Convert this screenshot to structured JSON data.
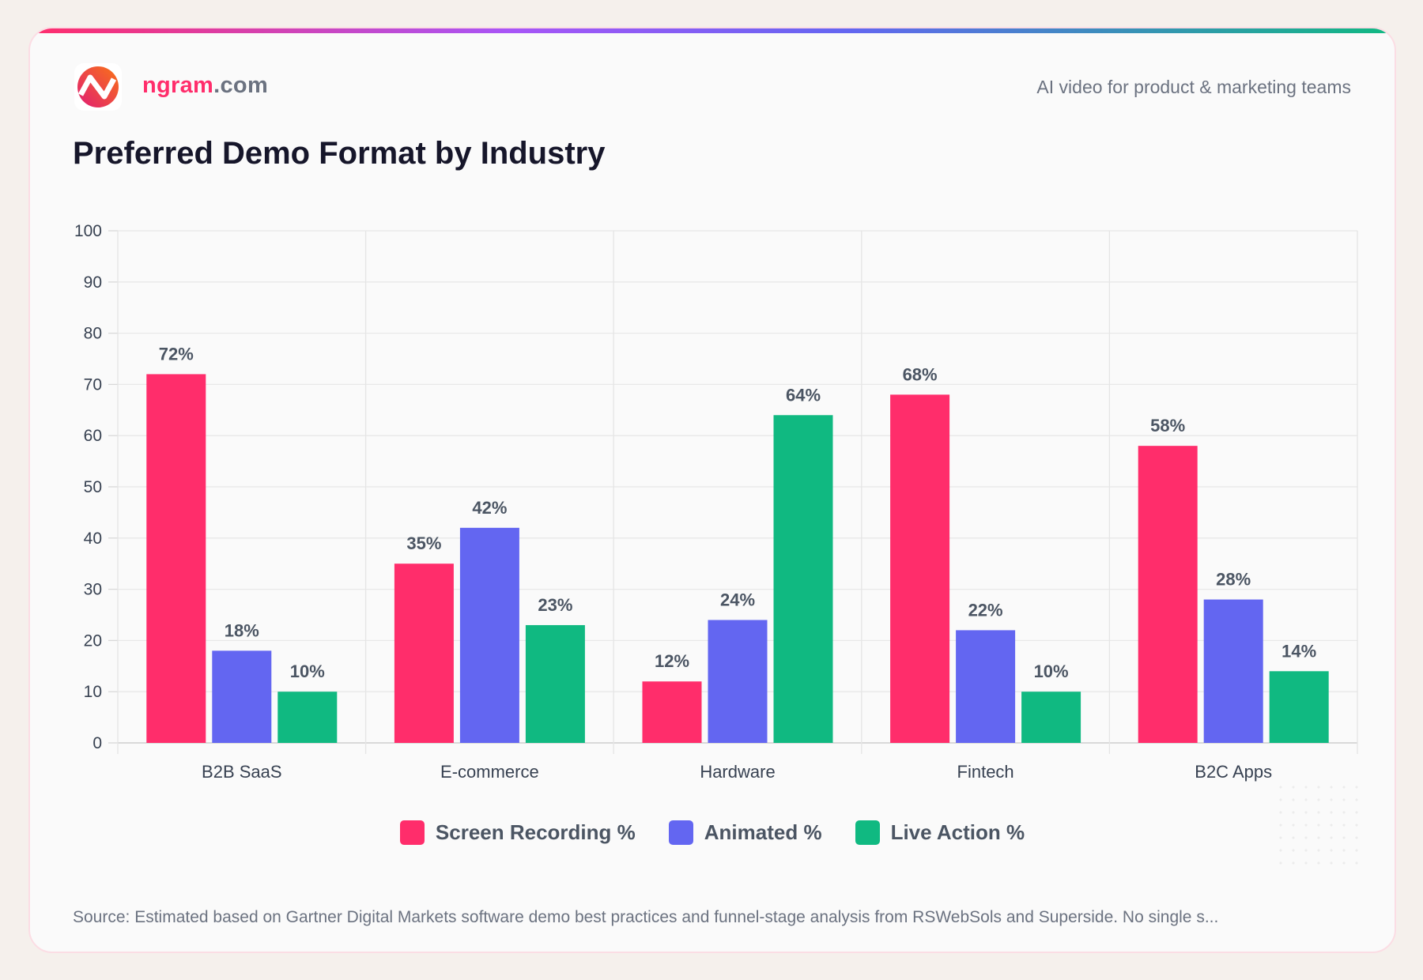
{
  "brand": {
    "name_primary": "ngram",
    "name_suffix": ".com",
    "tagline": "AI video for product & marketing teams"
  },
  "title": "Preferred Demo Format by Industry",
  "source": "Source: Estimated based on Gartner Digital Markets software demo best practices and funnel-stage analysis from RSWebSols and Superside. No single s...",
  "chart_data": {
    "type": "bar",
    "title": "Preferred Demo Format by Industry",
    "categories": [
      "B2B SaaS",
      "E-commerce",
      "Hardware",
      "Fintech",
      "B2C Apps"
    ],
    "series": [
      {
        "name": "Screen Recording %",
        "color": "#FF2D6B",
        "values": [
          72,
          35,
          12,
          68,
          58
        ]
      },
      {
        "name": "Animated %",
        "color": "#6366F1",
        "values": [
          18,
          42,
          24,
          22,
          28
        ]
      },
      {
        "name": "Live Action %",
        "color": "#10B981",
        "values": [
          10,
          23,
          64,
          10,
          14
        ]
      }
    ],
    "ylim": [
      0,
      100
    ],
    "yticks": [
      0,
      10,
      20,
      30,
      40,
      50,
      60,
      70,
      80,
      90,
      100
    ],
    "data_label_suffix": "%",
    "grid": true,
    "legend": "bottom"
  }
}
